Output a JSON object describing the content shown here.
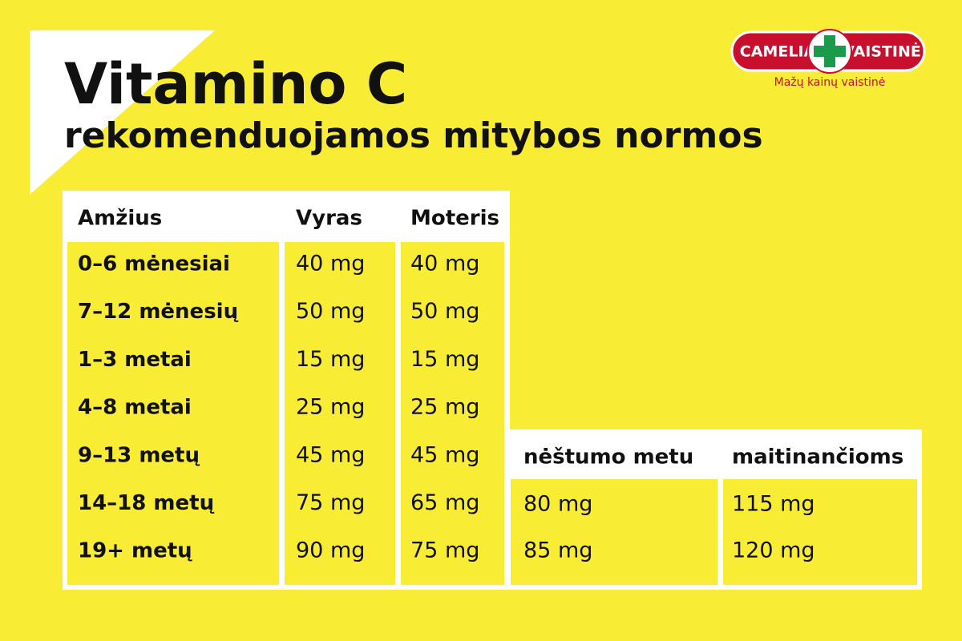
{
  "header": {
    "title": "Vitamino C",
    "subtitle": "rekomenduojamos mitybos normos"
  },
  "logo": {
    "left": "CAMELIA",
    "right": "VAISTINĖ",
    "tagline": "Mažų kainų vaistinė"
  },
  "table": {
    "columns": [
      "Amžius",
      "Vyras",
      "Moteris"
    ],
    "rows": [
      [
        "0–6 mėnesiai",
        "40 mg",
        "40 mg"
      ],
      [
        "7–12 mėnesių",
        "50 mg",
        "50 mg"
      ],
      [
        "1–3 metai",
        "15 mg",
        "15 mg"
      ],
      [
        "4–8 metai",
        "25 mg",
        "25 mg"
      ],
      [
        "9–13 metų",
        "45 mg",
        "45 mg"
      ],
      [
        "14–18 metų",
        "75 mg",
        "65 mg"
      ],
      [
        "19+ metų",
        "90 mg",
        "75 mg"
      ]
    ]
  },
  "special_table": {
    "columns": [
      "nėštumo metu",
      "maitinančioms"
    ],
    "rows": [
      [
        "80 mg",
        "115 mg"
      ],
      [
        "85 mg",
        "120 mg"
      ]
    ]
  }
}
